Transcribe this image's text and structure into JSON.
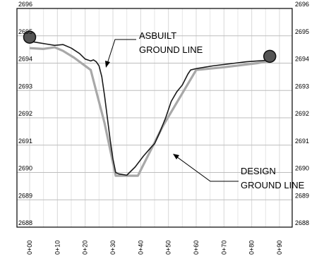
{
  "chart_data": {
    "type": "line",
    "title": "",
    "xlabel": "",
    "ylabel": "",
    "xlim": [
      0,
      90
    ],
    "ylim": [
      2688,
      2696
    ],
    "grid": true,
    "x_ticks": [
      "0+00",
      "0+10",
      "0+20",
      "0+30",
      "0+40",
      "0+50",
      "0+60",
      "0+70",
      "0+80",
      "0+90"
    ],
    "y_ticks": [
      "2688",
      "2689",
      "2690",
      "2691",
      "2692",
      "2693",
      "2694",
      "2695",
      "2696"
    ],
    "series": [
      {
        "name": "ASBUILT GROUND LINE",
        "color": "#1a1a1a",
        "points": [
          [
            0,
            2694.8
          ],
          [
            3,
            2694.75
          ],
          [
            6,
            2694.7
          ],
          [
            9,
            2694.65
          ],
          [
            12,
            2694.68
          ],
          [
            15,
            2694.55
          ],
          [
            18,
            2694.35
          ],
          [
            20,
            2694.15
          ],
          [
            22,
            2694.08
          ],
          [
            23,
            2694.12
          ],
          [
            24,
            2694.05
          ],
          [
            25,
            2693.9
          ],
          [
            26,
            2693.5
          ],
          [
            27,
            2692.8
          ],
          [
            28,
            2692.0
          ],
          [
            29,
            2691.2
          ],
          [
            30,
            2690.5
          ],
          [
            31,
            2690.0
          ],
          [
            32,
            2689.95
          ],
          [
            35,
            2689.9
          ],
          [
            38,
            2690.2
          ],
          [
            41,
            2690.6
          ],
          [
            44,
            2690.95
          ],
          [
            45,
            2691.05
          ],
          [
            47,
            2691.5
          ],
          [
            49,
            2692.0
          ],
          [
            51,
            2692.6
          ],
          [
            53,
            2692.95
          ],
          [
            55,
            2693.2
          ],
          [
            57,
            2693.6
          ],
          [
            58,
            2693.75
          ],
          [
            60,
            2693.8
          ],
          [
            63,
            2693.85
          ],
          [
            66,
            2693.9
          ],
          [
            70,
            2693.95
          ],
          [
            74,
            2694.0
          ],
          [
            78,
            2694.05
          ],
          [
            82,
            2694.08
          ],
          [
            85,
            2694.1
          ],
          [
            87,
            2694.15
          ]
        ]
      },
      {
        "name": "DESIGN GROUND LINE",
        "color": "#a8a8a8",
        "points": [
          [
            0,
            2694.55
          ],
          [
            5,
            2694.52
          ],
          [
            9,
            2694.58
          ],
          [
            12,
            2694.45
          ],
          [
            16,
            2694.2
          ],
          [
            22,
            2693.75
          ],
          [
            27,
            2691.8
          ],
          [
            31,
            2689.88
          ],
          [
            39,
            2689.88
          ],
          [
            48,
            2691.7
          ],
          [
            60,
            2693.75
          ],
          [
            70,
            2693.85
          ],
          [
            82,
            2694.0
          ],
          [
            87,
            2694.1
          ]
        ]
      }
    ],
    "markers": [
      {
        "name": "start-marker",
        "x": 0,
        "y": 2694.95
      },
      {
        "name": "end-marker",
        "x": 86.5,
        "y": 2694.25
      }
    ],
    "annotations": [
      {
        "name": "asbuilt-label",
        "lines": [
          "ASBUILT",
          "GROUND LINE"
        ]
      },
      {
        "name": "design-label",
        "lines": [
          "DESIGN",
          "GROUND LINE"
        ]
      }
    ]
  }
}
